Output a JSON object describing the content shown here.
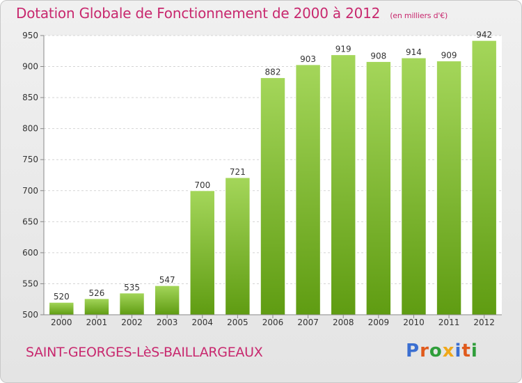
{
  "title": "Dotation Globale de Fonctionnement de 2000 à 2012",
  "unit_note": "(en milliers d'€)",
  "commune": "SAINT-GEORGES-LèS-BAILLARGEAUX",
  "logo": {
    "text": "Proxiti",
    "colors": [
      "#3b6fd1",
      "#e05a1c",
      "#2f9e3a",
      "#f0a81a",
      "#3b6fd1",
      "#e05a1c",
      "#2f9e3a"
    ]
  },
  "colors": {
    "bar_light": "#a4d65a",
    "bar_dark": "#5f9c12",
    "accent": "#c8286e"
  },
  "chart_data": {
    "type": "bar",
    "categories": [
      "2000",
      "2001",
      "2002",
      "2003",
      "2004",
      "2005",
      "2006",
      "2007",
      "2008",
      "2009",
      "2010",
      "2011",
      "2012"
    ],
    "values": [
      520,
      526,
      535,
      547,
      700,
      721,
      882,
      903,
      919,
      908,
      914,
      909,
      942
    ],
    "ylim": [
      500,
      950
    ],
    "yticks": [
      500,
      550,
      600,
      650,
      700,
      750,
      800,
      850,
      900,
      950
    ],
    "grid": true,
    "title": "Dotation Globale de Fonctionnement de 2000 à 2012",
    "xlabel": "",
    "ylabel": ""
  }
}
